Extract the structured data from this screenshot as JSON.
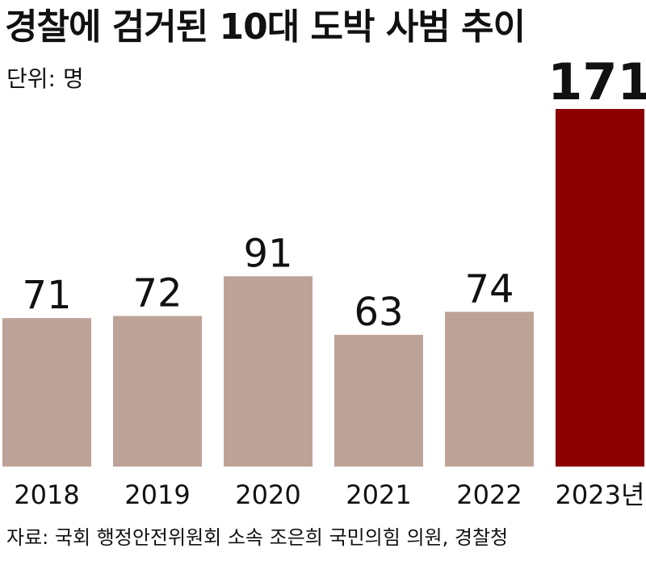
{
  "header": {
    "title": "경찰에 검거된 10대 도박 사범 추이",
    "unit": "단위: 명"
  },
  "footer": {
    "source": "자료: 국회 행정안전위원회 소속 조은희 국민의힘 의원, 경찰청"
  },
  "colors": {
    "bar_default": "#bda397",
    "bar_highlight": "#8b0000",
    "text": "#111111"
  },
  "chart_data": {
    "type": "bar",
    "title": "경찰에 검거된 10대 도박 사범 추이",
    "ylabel": "단위: 명",
    "categories": [
      "2018",
      "2019",
      "2020",
      "2021",
      "2022",
      "2023년"
    ],
    "values": [
      71,
      72,
      91,
      63,
      74,
      171
    ],
    "data_labels": [
      "71",
      "72",
      "91",
      "63",
      "74",
      "171"
    ],
    "highlight_index": 5,
    "ylim": [
      0,
      171
    ],
    "grid": false,
    "legend": "none"
  }
}
